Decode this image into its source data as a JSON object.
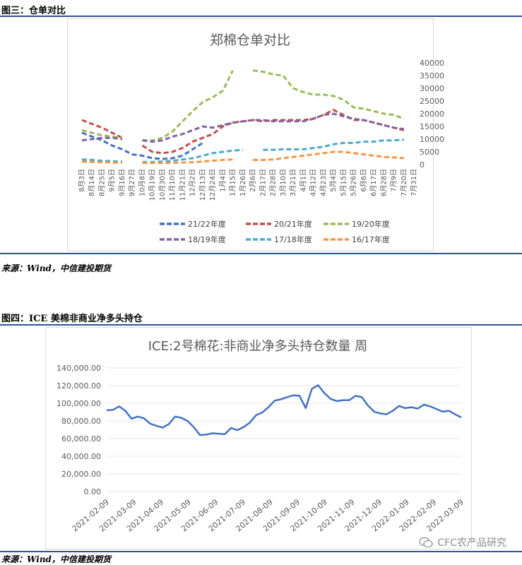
{
  "figure3": {
    "title": "图三：仓单对比",
    "source": "来源：Wind，中信建投期货"
  },
  "figure4": {
    "title": "图四：ICE 美棉非商业净多头持仓",
    "source": "来源：Wind，中信建投期货"
  },
  "watermark": "CFC农产品研究",
  "colors": {
    "rule": "#2f5496",
    "s2122": "#4472c4",
    "s2021": "#c0504d",
    "s1920": "#9bbb59",
    "s1819": "#8064a2",
    "s1718": "#4bacc6",
    "s1617": "#f79646"
  },
  "chart_data": [
    {
      "type": "line",
      "title": "郑棉仓单对比",
      "categories": [
        "8月3日",
        "8月14日",
        "8月25日",
        "9月5日",
        "9月16日",
        "9月27日",
        "10月8日",
        "10月19日",
        "10月30日",
        "11月10日",
        "11月21日",
        "12月2日",
        "12月13日",
        "12月24日",
        "1月4日",
        "1月15日",
        "1月26日",
        "2月6日",
        "2月17日",
        "2月28日",
        "3月10日",
        "3月21日",
        "4月1日",
        "4月12日",
        "4月23日",
        "5月4日",
        "5月15日",
        "5月26日",
        "6月6日",
        "6月17日",
        "6月28日",
        "7月9日",
        "7月20日",
        "7月31日"
      ],
      "ylim": [
        0,
        40000
      ],
      "yticks": [
        "0",
        "5000",
        "10000",
        "15000",
        "20000",
        "25000",
        "30000",
        "35000",
        "40000"
      ],
      "legend_position": "bottom",
      "series": [
        {
          "name": "21/22年度",
          "values": [
            12500,
            11000,
            9500,
            7500,
            6000,
            4000,
            3500,
            2500,
            2200,
            2500,
            3500,
            6000,
            8500,
            null,
            null,
            null,
            null,
            null,
            null,
            null,
            null,
            null,
            null,
            null,
            null,
            null,
            null,
            null,
            null,
            null,
            null,
            null,
            null,
            null
          ]
        },
        {
          "name": "20/21年度",
          "values": [
            17500,
            16000,
            14500,
            12500,
            10500,
            null,
            7500,
            5000,
            4500,
            5000,
            6500,
            9000,
            10500,
            12000,
            15000,
            16500,
            17000,
            17500,
            17000,
            17500,
            17500,
            17500,
            17500,
            18000,
            19500,
            21500,
            19500,
            17500,
            17500,
            16500,
            15500,
            14500,
            13500,
            null
          ]
        },
        {
          "name": "19/20年度",
          "values": [
            13500,
            12500,
            11500,
            11000,
            10500,
            null,
            9500,
            9500,
            10500,
            13000,
            17000,
            21000,
            24500,
            26500,
            29000,
            37000,
            null,
            37000,
            36500,
            35500,
            35000,
            30000,
            28500,
            27500,
            27500,
            27000,
            25500,
            22500,
            22000,
            21000,
            20000,
            19500,
            18000,
            null
          ]
        },
        {
          "name": "18/19年度",
          "values": [
            9500,
            10000,
            10500,
            10500,
            10000,
            null,
            9500,
            9000,
            9500,
            11000,
            12000,
            13500,
            15000,
            14500,
            15500,
            16500,
            17000,
            17500,
            17500,
            17000,
            17000,
            17000,
            17000,
            18000,
            19500,
            20000,
            19000,
            18000,
            17500,
            16500,
            15500,
            14500,
            14000,
            null
          ]
        },
        {
          "name": "17/18年度",
          "values": [
            2000,
            1800,
            1500,
            1300,
            1200,
            null,
            1000,
            1000,
            1200,
            1500,
            2000,
            2500,
            3500,
            4500,
            5000,
            5500,
            5800,
            null,
            5800,
            5800,
            6000,
            6000,
            6000,
            6500,
            7000,
            8000,
            8500,
            8500,
            9000,
            9000,
            9500,
            9500,
            9800,
            null
          ]
        },
        {
          "name": "16/17年度",
          "values": [
            1200,
            1000,
            900,
            800,
            700,
            null,
            600,
            600,
            600,
            700,
            800,
            900,
            1200,
            1500,
            1800,
            2000,
            null,
            1800,
            1800,
            2000,
            2500,
            3000,
            3500,
            4000,
            4500,
            5000,
            5000,
            4500,
            4000,
            3500,
            3000,
            2800,
            2500,
            null
          ]
        }
      ]
    },
    {
      "type": "line",
      "title": "ICE:2号棉花:非商业净多头持仓数量  周",
      "ylim": [
        0,
        140000
      ],
      "yticks": [
        "0.00",
        "20,000.00",
        "40,000.00",
        "60,000.00",
        "80,000.00",
        "100,000.00",
        "120,000.00",
        "140,000.00"
      ],
      "xticks": [
        "2021-02-09",
        "2021-03-09",
        "2021-04-09",
        "2021-05-09",
        "2021-06-09",
        "2021-07-09",
        "2021-08-09",
        "2021-09-09",
        "2021-10-09",
        "2021-11-09",
        "2021-12-09",
        "2022-01-09",
        "2022-02-09",
        "2022-03-09"
      ],
      "series": [
        {
          "values": [
            92000,
            92500,
            96500,
            91500,
            82500,
            85000,
            83000,
            77000,
            74500,
            72500,
            76500,
            85000,
            83500,
            80000,
            73000,
            64000,
            64500,
            66000,
            65500,
            65000,
            72000,
            69500,
            73000,
            78000,
            86500,
            89500,
            95500,
            103000,
            104500,
            107000,
            109000,
            108500,
            94500,
            116500,
            120500,
            111500,
            105000,
            102500,
            103500,
            103500,
            108500,
            107000,
            97500,
            90500,
            88500,
            87500,
            91500,
            97000,
            94500,
            95500,
            94000,
            98500,
            96500,
            93500,
            90500,
            91500,
            87500,
            84000
          ]
        }
      ]
    }
  ]
}
